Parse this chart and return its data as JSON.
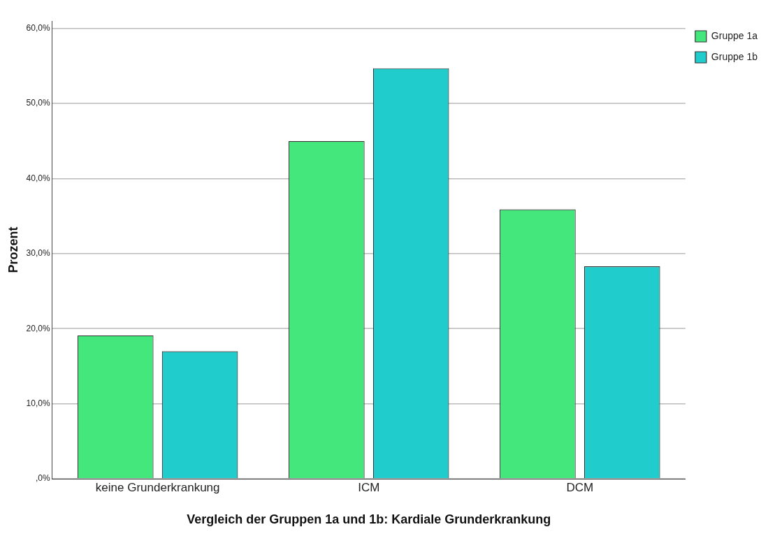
{
  "chart_data": {
    "type": "bar",
    "xlabel": "Vergleich der Gruppen 1a und 1b: Kardiale Grunderkrankung",
    "ylabel": "Prozent",
    "categories": [
      "keine Grunderkrankung",
      "ICM",
      "DCM"
    ],
    "series": [
      {
        "name": "Gruppe 1a",
        "color": "#44e77c",
        "values": [
          19.1,
          45.0,
          35.9
        ]
      },
      {
        "name": "Gruppe 1b",
        "color": "#20cccc",
        "values": [
          17.0,
          54.7,
          28.3
        ]
      }
    ],
    "ylim": [
      0,
      61
    ],
    "yticks": [
      {
        "value": 0,
        "label": ",0%"
      },
      {
        "value": 10,
        "label": "10,0%"
      },
      {
        "value": 20,
        "label": "20,0%"
      },
      {
        "value": 30,
        "label": "30,0%"
      },
      {
        "value": 40,
        "label": "40,0%"
      },
      {
        "value": 50,
        "label": "50,0%"
      },
      {
        "value": 60,
        "label": "60,0%"
      }
    ],
    "grid": "y",
    "legend": "top right"
  }
}
